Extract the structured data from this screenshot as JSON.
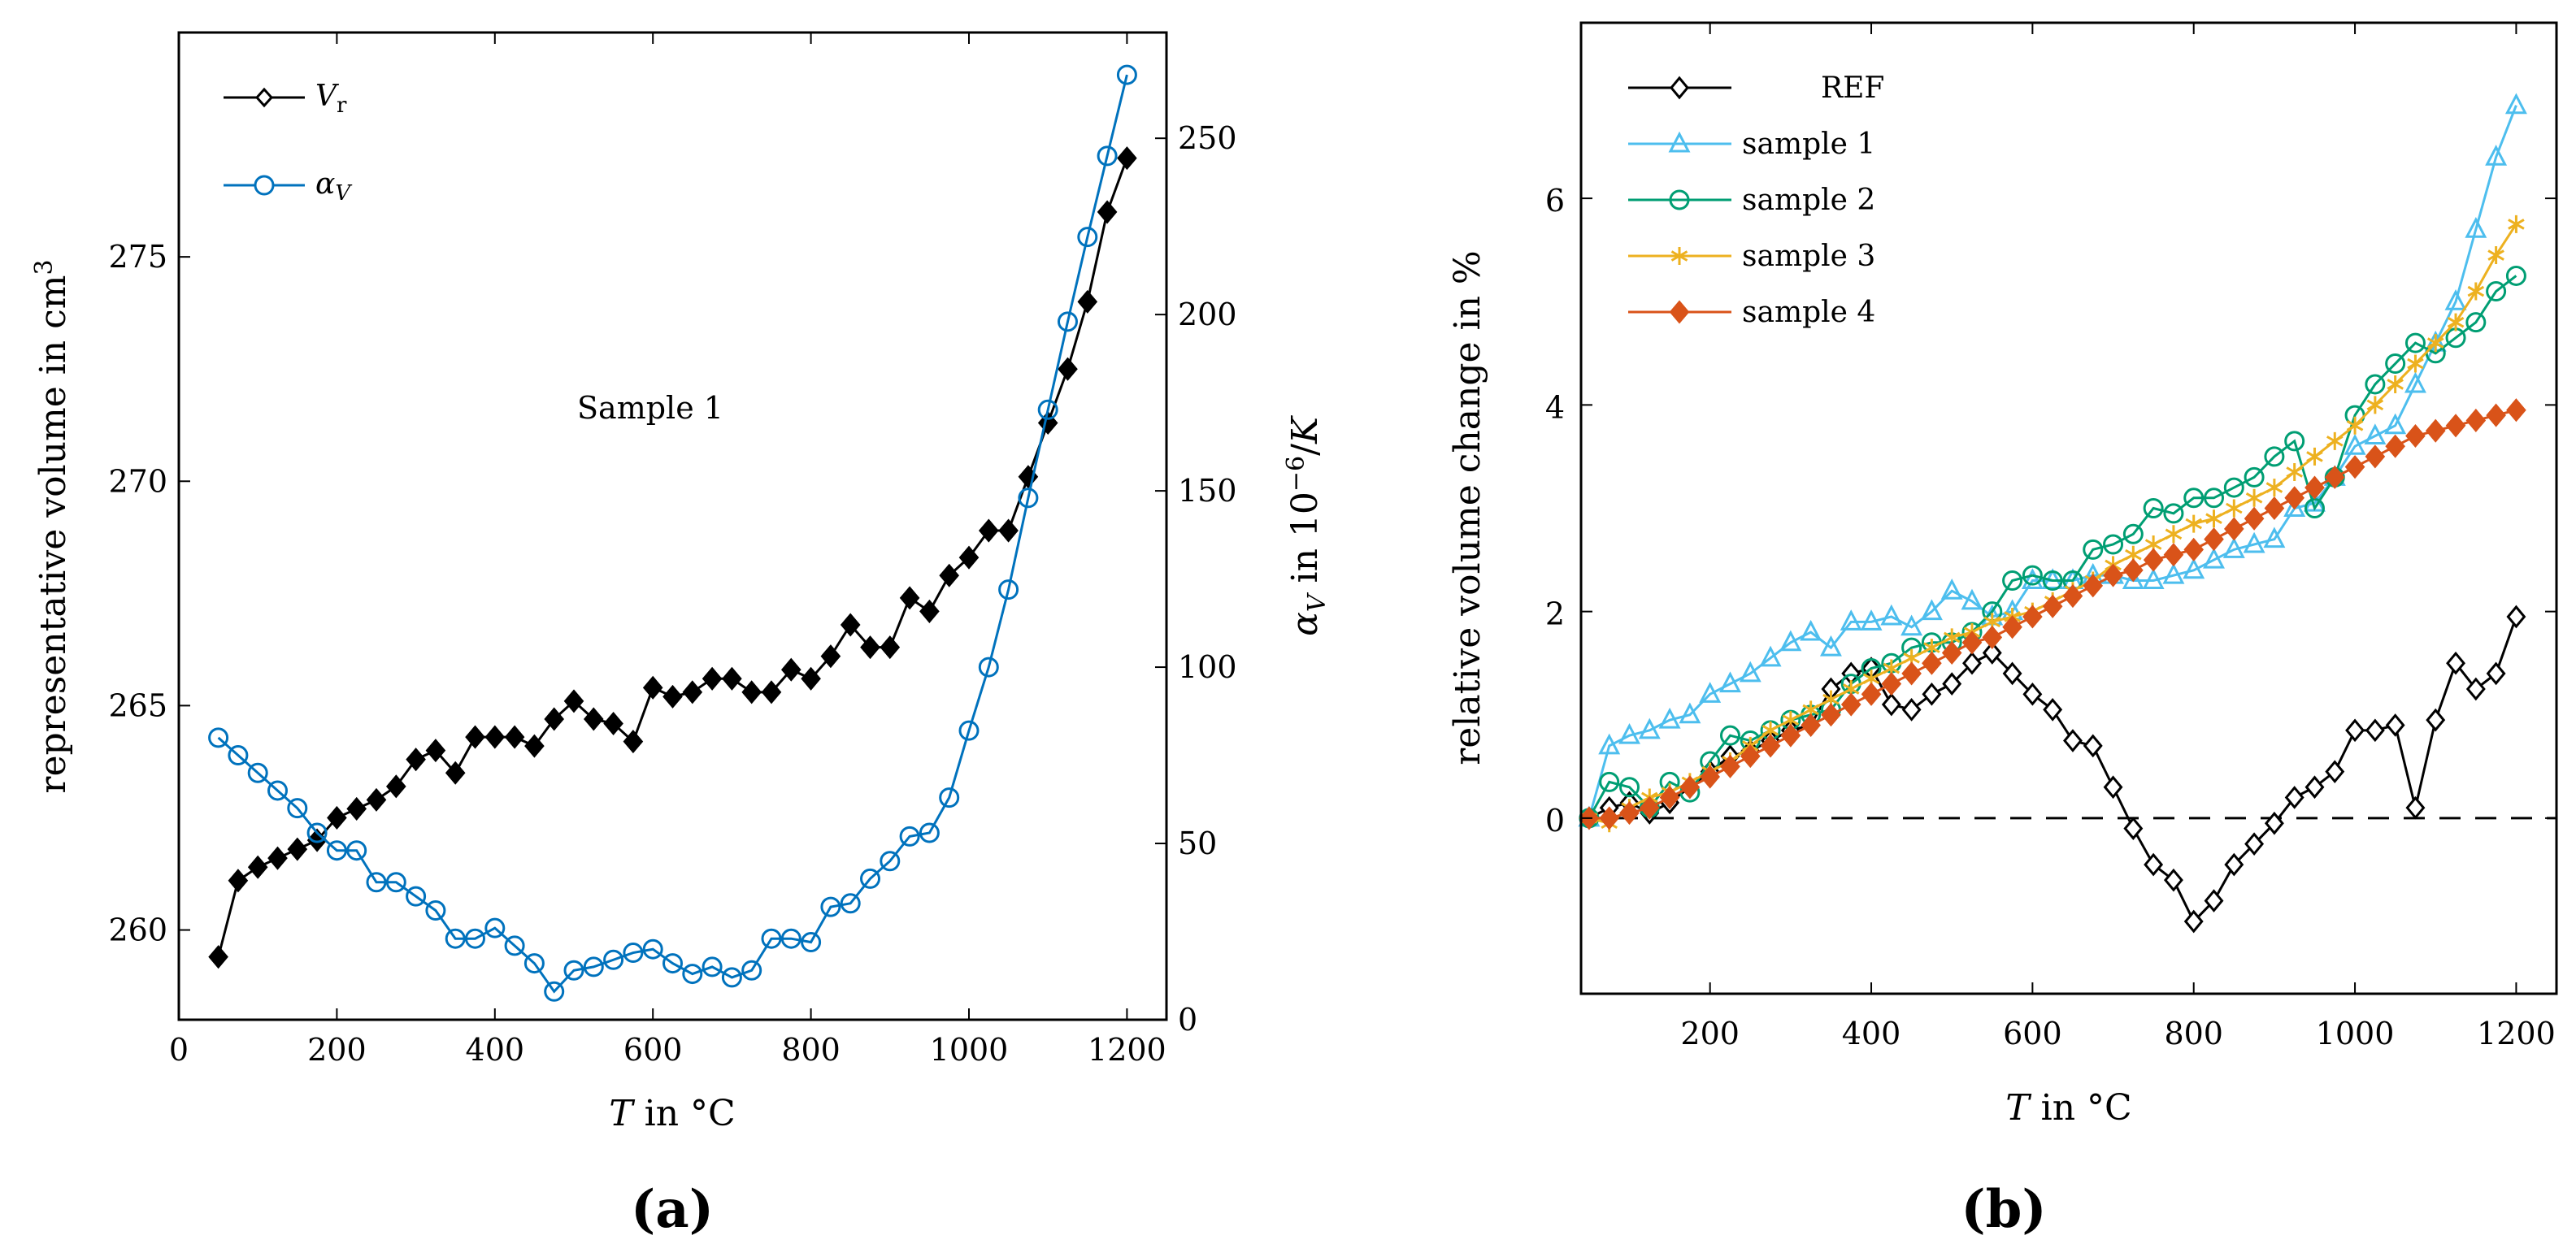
{
  "figure": {
    "panel_a_label": "(a)",
    "panel_b_label": "(b)"
  },
  "chart_data": [
    {
      "id": "a",
      "type": "line",
      "panel_label": "(a)",
      "annotation": "Sample 1",
      "xlabel": "T in °C",
      "ylabel_left": "representative volume in cm³",
      "ylabel_right": "αV in 10⁻⁶/K",
      "xlim": [
        0,
        1250
      ],
      "ylim_left": [
        258,
        280
      ],
      "ylim_right": [
        0,
        280
      ],
      "xticks": [
        "0",
        "200",
        "400",
        "600",
        "800",
        "1000",
        "1200"
      ],
      "yticks_left": [
        "260",
        "265",
        "270",
        "275"
      ],
      "yticks_right": [
        "0",
        "50",
        "100",
        "150",
        "200",
        "250"
      ],
      "legend_position": "top-left",
      "series": [
        {
          "name": "Vr",
          "axis": "left",
          "color": "#000000",
          "marker": "diamond",
          "x": [
            50,
            75,
            100,
            125,
            150,
            175,
            200,
            225,
            250,
            275,
            300,
            325,
            350,
            375,
            400,
            425,
            450,
            475,
            500,
            525,
            550,
            575,
            600,
            625,
            650,
            675,
            700,
            725,
            750,
            775,
            800,
            825,
            850,
            875,
            900,
            925,
            950,
            975,
            1000,
            1025,
            1050,
            1075,
            1100,
            1125,
            1150,
            1175,
            1200
          ],
          "y": [
            259.4,
            261.1,
            261.4,
            261.6,
            261.8,
            262.0,
            262.5,
            262.7,
            262.9,
            263.2,
            263.8,
            264.0,
            263.5,
            264.3,
            264.3,
            264.3,
            264.1,
            264.7,
            265.1,
            264.7,
            264.6,
            264.2,
            265.4,
            265.2,
            265.3,
            265.6,
            265.6,
            265.3,
            265.3,
            265.8,
            265.6,
            266.1,
            266.8,
            266.3,
            266.3,
            267.4,
            267.1,
            267.9,
            268.3,
            268.9,
            268.9,
            270.1,
            271.3,
            272.5,
            274.0,
            276.0,
            277.2
          ]
        },
        {
          "name": "αV",
          "axis": "right",
          "color": "#0072BD",
          "marker": "circle",
          "x": [
            50,
            75,
            100,
            125,
            150,
            175,
            200,
            225,
            250,
            275,
            300,
            325,
            350,
            375,
            400,
            425,
            450,
            475,
            500,
            525,
            550,
            575,
            600,
            625,
            650,
            675,
            700,
            725,
            750,
            775,
            800,
            825,
            850,
            875,
            900,
            925,
            950,
            975,
            1000,
            1025,
            1050,
            1075,
            1100,
            1125,
            1150,
            1175,
            1200
          ],
          "y": [
            80,
            75,
            70,
            65,
            60,
            53,
            48,
            48,
            39,
            39,
            35,
            31,
            23,
            23,
            26,
            21,
            16,
            8,
            14,
            15,
            17,
            19,
            20,
            16,
            13,
            15,
            12,
            14,
            23,
            23,
            22,
            32,
            33,
            40,
            45,
            52,
            53,
            63,
            82,
            100,
            122,
            148,
            173,
            198,
            222,
            245,
            268
          ]
        }
      ]
    },
    {
      "id": "b",
      "type": "line",
      "panel_label": "(b)",
      "xlabel": "T in °C",
      "ylabel": "relative volume change in %",
      "xlim": [
        40,
        1250
      ],
      "ylim": [
        -1.7,
        7.7
      ],
      "xticks": [
        "200",
        "400",
        "600",
        "800",
        "1000",
        "1200"
      ],
      "yticks": [
        "0",
        "2",
        "4",
        "6"
      ],
      "reference_line": 0,
      "legend_position": "top-left",
      "series": [
        {
          "name": "REF",
          "color": "#000000",
          "marker": "diamond-open",
          "x": [
            50,
            75,
            100,
            125,
            150,
            175,
            200,
            225,
            250,
            275,
            300,
            325,
            350,
            375,
            400,
            425,
            450,
            475,
            500,
            525,
            550,
            575,
            600,
            625,
            650,
            675,
            700,
            725,
            750,
            775,
            800,
            825,
            850,
            875,
            900,
            925,
            950,
            975,
            1000,
            1025,
            1050,
            1075,
            1100,
            1125,
            1150,
            1175,
            1200
          ],
          "y": [
            0,
            0.1,
            0.15,
            0.05,
            0.15,
            0.3,
            0.45,
            0.6,
            0.65,
            0.75,
            0.85,
            0.9,
            1.25,
            1.4,
            1.45,
            1.1,
            1.05,
            1.2,
            1.3,
            1.5,
            1.6,
            1.4,
            1.2,
            1.05,
            0.75,
            0.7,
            0.3,
            -0.1,
            -0.45,
            -0.6,
            -1.0,
            -0.8,
            -0.45,
            -0.25,
            -0.05,
            0.2,
            0.3,
            0.45,
            0.85,
            0.85,
            0.9,
            0.1,
            0.95,
            1.5,
            1.25,
            1.4,
            1.95
          ]
        },
        {
          "name": "sample 1",
          "color": "#4DBEEE",
          "marker": "triangle",
          "x": [
            50,
            75,
            100,
            125,
            150,
            175,
            200,
            225,
            250,
            275,
            300,
            325,
            350,
            375,
            400,
            425,
            450,
            475,
            500,
            525,
            550,
            575,
            600,
            625,
            650,
            675,
            700,
            725,
            750,
            775,
            800,
            825,
            850,
            875,
            900,
            925,
            950,
            975,
            1000,
            1025,
            1050,
            1075,
            1100,
            1125,
            1150,
            1175,
            1200
          ],
          "y": [
            0,
            0.7,
            0.8,
            0.85,
            0.95,
            1.0,
            1.2,
            1.3,
            1.4,
            1.55,
            1.7,
            1.8,
            1.65,
            1.9,
            1.9,
            1.95,
            1.85,
            2.0,
            2.2,
            2.1,
            1.95,
            2.0,
            2.3,
            2.3,
            2.3,
            2.35,
            2.35,
            2.3,
            2.3,
            2.35,
            2.4,
            2.5,
            2.6,
            2.65,
            2.7,
            3.0,
            3.05,
            3.3,
            3.6,
            3.7,
            3.8,
            4.2,
            4.6,
            5.0,
            5.7,
            6.4,
            6.9
          ]
        },
        {
          "name": "sample 2",
          "color": "#009E73",
          "marker": "circle",
          "x": [
            50,
            75,
            100,
            125,
            150,
            175,
            200,
            225,
            250,
            275,
            300,
            325,
            350,
            375,
            400,
            425,
            450,
            475,
            500,
            525,
            550,
            575,
            600,
            625,
            650,
            675,
            700,
            725,
            750,
            775,
            800,
            825,
            850,
            875,
            900,
            925,
            950,
            975,
            1000,
            1025,
            1050,
            1075,
            1100,
            1125,
            1150,
            1175,
            1200
          ],
          "y": [
            0,
            0.35,
            0.3,
            0.1,
            0.35,
            0.25,
            0.55,
            0.8,
            0.75,
            0.85,
            0.95,
            1.0,
            1.05,
            1.3,
            1.45,
            1.5,
            1.65,
            1.7,
            1.7,
            1.8,
            2.0,
            2.3,
            2.35,
            2.3,
            2.3,
            2.6,
            2.65,
            2.75,
            3.0,
            2.95,
            3.1,
            3.1,
            3.2,
            3.3,
            3.5,
            3.65,
            3.0,
            3.3,
            3.9,
            4.2,
            4.4,
            4.6,
            4.5,
            4.65,
            4.8,
            5.1,
            5.25
          ]
        },
        {
          "name": "sample 3",
          "color": "#EDB120",
          "marker": "star",
          "x": [
            50,
            75,
            100,
            125,
            150,
            175,
            200,
            225,
            250,
            275,
            300,
            325,
            350,
            375,
            400,
            425,
            450,
            475,
            500,
            525,
            550,
            575,
            600,
            625,
            650,
            675,
            700,
            725,
            750,
            775,
            800,
            825,
            850,
            875,
            900,
            925,
            950,
            975,
            1000,
            1025,
            1050,
            1075,
            1100,
            1125,
            1150,
            1175,
            1200
          ],
          "y": [
            0,
            -0.05,
            0.1,
            0.2,
            0.25,
            0.35,
            0.45,
            0.55,
            0.7,
            0.85,
            0.95,
            1.05,
            1.15,
            1.25,
            1.35,
            1.45,
            1.55,
            1.65,
            1.75,
            1.8,
            1.9,
            1.95,
            2.0,
            2.1,
            2.2,
            2.3,
            2.45,
            2.55,
            2.65,
            2.75,
            2.85,
            2.9,
            3.0,
            3.1,
            3.2,
            3.35,
            3.5,
            3.65,
            3.8,
            4.0,
            4.2,
            4.4,
            4.6,
            4.8,
            5.1,
            5.45,
            5.75
          ]
        },
        {
          "name": "sample 4",
          "color": "#D95319",
          "marker": "diamond",
          "x": [
            50,
            75,
            100,
            125,
            150,
            175,
            200,
            225,
            250,
            275,
            300,
            325,
            350,
            375,
            400,
            425,
            450,
            475,
            500,
            525,
            550,
            575,
            600,
            625,
            650,
            675,
            700,
            725,
            750,
            775,
            800,
            825,
            850,
            875,
            900,
            925,
            950,
            975,
            1000,
            1025,
            1050,
            1075,
            1100,
            1125,
            1150,
            1175,
            1200
          ],
          "y": [
            0,
            0.0,
            0.05,
            0.1,
            0.2,
            0.3,
            0.4,
            0.5,
            0.6,
            0.7,
            0.8,
            0.9,
            1.0,
            1.1,
            1.2,
            1.3,
            1.4,
            1.5,
            1.6,
            1.7,
            1.75,
            1.85,
            1.95,
            2.05,
            2.15,
            2.25,
            2.35,
            2.4,
            2.5,
            2.55,
            2.6,
            2.7,
            2.8,
            2.9,
            3.0,
            3.1,
            3.2,
            3.3,
            3.4,
            3.5,
            3.6,
            3.7,
            3.75,
            3.8,
            3.85,
            3.9,
            3.95
          ]
        }
      ]
    }
  ]
}
